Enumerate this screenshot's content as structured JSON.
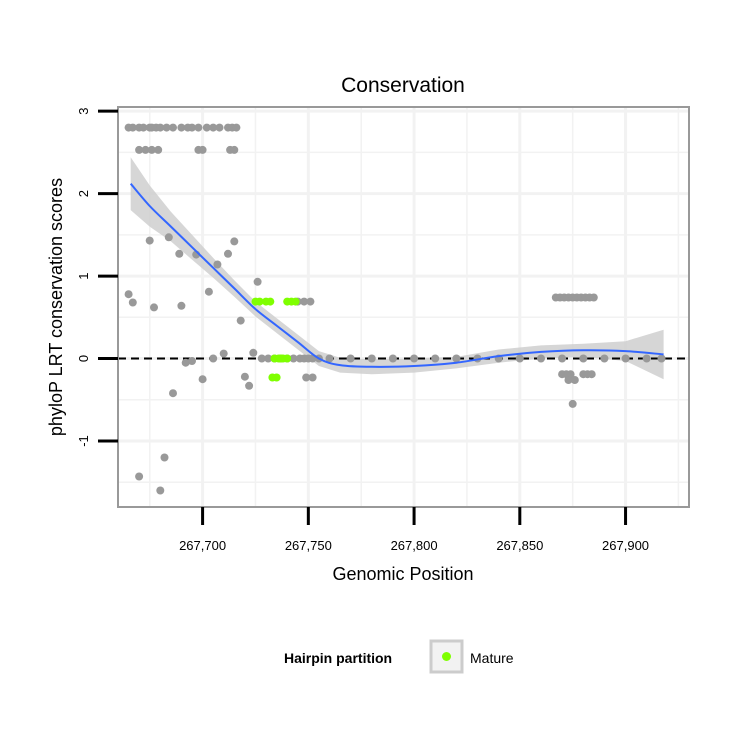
{
  "chart_data": {
    "type": "scatter",
    "title": "Conservation",
    "xlabel": "Genomic Position",
    "ylabel": "phyloP LRT conservation scores",
    "xlim": [
      267660,
      267930
    ],
    "ylim": [
      -1.8,
      3.05
    ],
    "x_ticks": [
      267700,
      267750,
      267800,
      267850,
      267900
    ],
    "x_tick_labels": [
      "267,700",
      "267,750",
      "267,800",
      "267,850",
      "267,900"
    ],
    "y_ticks": [
      -1,
      0,
      1,
      2,
      3
    ],
    "y_tick_labels": [
      "-1",
      "0",
      "1",
      "2",
      "3"
    ],
    "reference_line_y": 0,
    "colors": {
      "background_points": "#999999",
      "mature": "#7fff00",
      "smooth_line": "#3366ff",
      "ribbon": "#cccccc",
      "grid": "#f2f2f2",
      "border": "#999999"
    },
    "series": [
      {
        "name": "Hairpin",
        "x": [
          267665,
          267667,
          267670,
          267672,
          267675,
          267676,
          267678,
          267680,
          267683,
          267686,
          267690,
          267693,
          267695,
          267698,
          267702,
          267705,
          267708,
          267712,
          267714,
          267716,
          267670,
          267673,
          267676,
          267679,
          267698,
          267700,
          267713,
          267715,
          267665,
          267667,
          267670,
          267675,
          267677,
          267680,
          267682,
          267684,
          267686,
          267689,
          267690,
          267692,
          267695,
          267697,
          267700,
          267703,
          267705,
          267707,
          267710,
          267712,
          267715,
          267718,
          267720,
          267722,
          267724,
          267726,
          267728,
          267731,
          267734,
          267737,
          267740,
          267743,
          267746,
          267748,
          267750,
          267752,
          267745,
          267748,
          267751,
          267755,
          267760,
          267770,
          267780,
          267790,
          267800,
          267810,
          267820,
          267830,
          267840,
          267850,
          267860,
          267870,
          267880,
          267890,
          267900,
          267910,
          267917,
          267867,
          267869,
          267871,
          267873,
          267875,
          267877,
          267879,
          267881,
          267883,
          267885,
          267870,
          267872,
          267874,
          267876,
          267880,
          267882,
          267884,
          267873,
          267875,
          267749,
          267752
        ],
        "y": [
          2.8,
          2.8,
          2.8,
          2.8,
          2.8,
          2.8,
          2.8,
          2.8,
          2.8,
          2.8,
          2.8,
          2.8,
          2.8,
          2.8,
          2.8,
          2.8,
          2.8,
          2.8,
          2.8,
          2.8,
          2.53,
          2.53,
          2.53,
          2.53,
          2.53,
          2.53,
          2.53,
          2.53,
          0.78,
          0.68,
          -1.43,
          1.43,
          0.62,
          -1.6,
          -1.2,
          1.47,
          -0.42,
          1.27,
          0.64,
          -0.05,
          -0.03,
          1.26,
          -0.25,
          0.81,
          0.0,
          1.14,
          0.06,
          1.27,
          1.42,
          0.46,
          -0.22,
          -0.33,
          0.07,
          0.93,
          0.0,
          0.0,
          0.0,
          0.0,
          0.0,
          0.0,
          0.0,
          0.0,
          0.0,
          0.0,
          0.69,
          0.69,
          0.69,
          0.0,
          0.0,
          0.0,
          0.0,
          0.0,
          0.0,
          0.0,
          0.0,
          0.0,
          0.0,
          0.0,
          0.0,
          0.0,
          0.0,
          0.0,
          0.0,
          0.0,
          0.0,
          0.74,
          0.74,
          0.74,
          0.74,
          0.74,
          0.74,
          0.74,
          0.74,
          0.74,
          0.74,
          -0.19,
          -0.19,
          -0.19,
          -0.26,
          -0.19,
          -0.19,
          -0.19,
          -0.26,
          -0.55,
          -0.23,
          -0.23
        ]
      },
      {
        "name": "Mature",
        "x": [
          267725,
          267727,
          267730,
          267732,
          267734,
          267736,
          267738,
          267740,
          267742,
          267744,
          267733,
          267735,
          267737,
          267740
        ],
        "y": [
          0.69,
          0.69,
          0.69,
          0.69,
          0.0,
          0.0,
          0.0,
          0.69,
          0.69,
          0.69,
          -0.23,
          -0.23,
          0.0,
          0.0
        ]
      }
    ],
    "smooth": {
      "x": [
        267666,
        267675,
        267685,
        267695,
        267705,
        267715,
        267725,
        267735,
        267745,
        267755,
        267765,
        267780,
        267800,
        267820,
        267840,
        267860,
        267880,
        267900,
        267918
      ],
      "y": [
        2.12,
        1.85,
        1.6,
        1.35,
        1.1,
        0.85,
        0.6,
        0.4,
        0.2,
        0.0,
        -0.08,
        -0.1,
        -0.09,
        -0.05,
        0.03,
        0.08,
        0.1,
        0.09,
        0.05
      ],
      "lower": [
        1.8,
        1.6,
        1.42,
        1.2,
        0.98,
        0.75,
        0.51,
        0.31,
        0.11,
        -0.09,
        -0.17,
        -0.19,
        -0.17,
        -0.12,
        -0.05,
        0.0,
        0.02,
        -0.03,
        -0.25
      ],
      "upper": [
        2.44,
        2.1,
        1.78,
        1.5,
        1.22,
        0.95,
        0.69,
        0.49,
        0.29,
        0.09,
        0.01,
        -0.01,
        0.0,
        0.02,
        0.11,
        0.16,
        0.18,
        0.21,
        0.35
      ]
    },
    "legend": {
      "title": "Hairpin partition",
      "entries": [
        {
          "label": "Mature",
          "color": "#7fff00"
        }
      ],
      "position": "bottom"
    }
  }
}
